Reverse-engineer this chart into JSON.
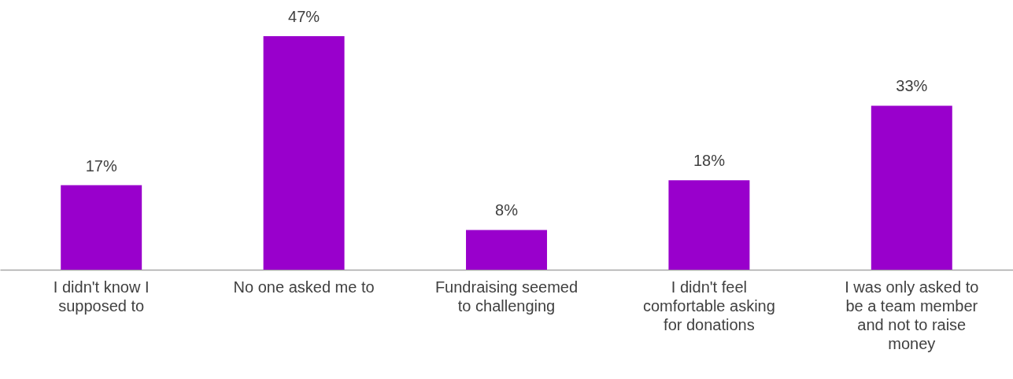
{
  "chart_data": {
    "type": "bar",
    "categories": [
      "I didn't know I supposed to",
      "No one asked me to",
      "Fundraising seemed to challenging",
      "I didn't feel comfortable asking for donations",
      "I was only asked to be a team member and not to raise money"
    ],
    "values": [
      17,
      47,
      8,
      18,
      33
    ],
    "value_labels": [
      "17%",
      "47%",
      "8%",
      "18%",
      "33%"
    ],
    "color": "#9900cc",
    "tick_labels": "x",
    "grid": false
  }
}
